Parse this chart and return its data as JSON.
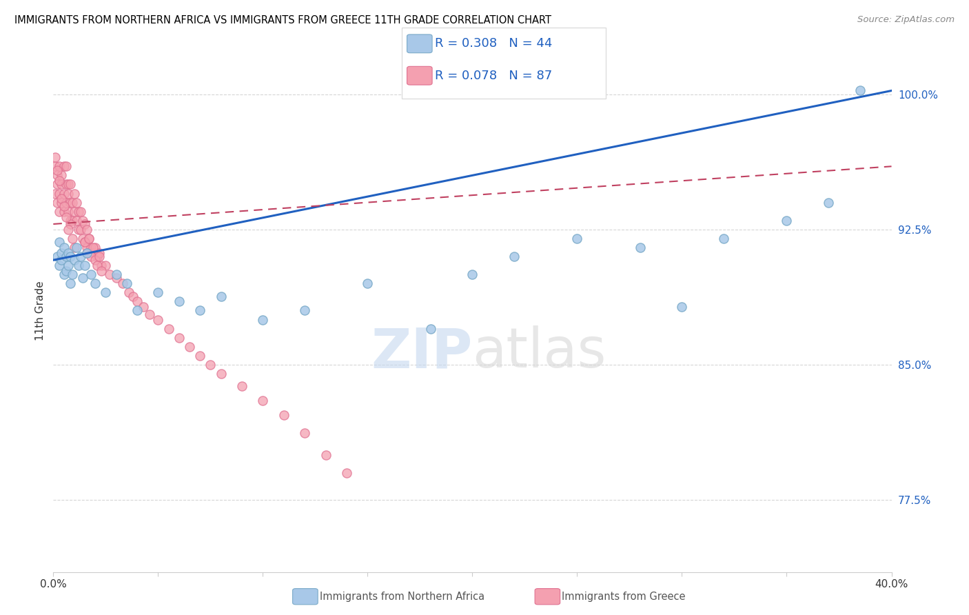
{
  "title": "IMMIGRANTS FROM NORTHERN AFRICA VS IMMIGRANTS FROM GREECE 11TH GRADE CORRELATION CHART",
  "source": "Source: ZipAtlas.com",
  "xlabel_blue": "Immigrants from Northern Africa",
  "xlabel_pink": "Immigrants from Greece",
  "ylabel": "11th Grade",
  "xlim": [
    0.0,
    0.4
  ],
  "ylim": [
    0.735,
    1.025
  ],
  "ytick_right": [
    0.775,
    0.85,
    0.925,
    1.0
  ],
  "ytick_right_labels": [
    "77.5%",
    "85.0%",
    "92.5%",
    "100.0%"
  ],
  "blue_R": 0.308,
  "blue_N": 44,
  "pink_R": 0.078,
  "pink_N": 87,
  "blue_color": "#a8c8e8",
  "blue_edge_color": "#7aaac8",
  "pink_color": "#f4a0b0",
  "pink_edge_color": "#e07090",
  "blue_line_color": "#2060c0",
  "pink_line_color": "#c04060",
  "grid_color": "#cccccc",
  "blue_x": [
    0.002,
    0.003,
    0.003,
    0.004,
    0.004,
    0.005,
    0.005,
    0.006,
    0.006,
    0.007,
    0.007,
    0.008,
    0.008,
    0.009,
    0.01,
    0.011,
    0.012,
    0.013,
    0.014,
    0.015,
    0.016,
    0.018,
    0.02,
    0.025,
    0.03,
    0.035,
    0.04,
    0.05,
    0.06,
    0.07,
    0.08,
    0.1,
    0.12,
    0.15,
    0.18,
    0.2,
    0.22,
    0.25,
    0.28,
    0.3,
    0.32,
    0.35,
    0.37,
    0.385
  ],
  "blue_y": [
    0.91,
    0.905,
    0.918,
    0.908,
    0.912,
    0.9,
    0.915,
    0.91,
    0.902,
    0.912,
    0.905,
    0.91,
    0.895,
    0.9,
    0.908,
    0.915,
    0.905,
    0.91,
    0.898,
    0.905,
    0.912,
    0.9,
    0.895,
    0.89,
    0.9,
    0.895,
    0.88,
    0.89,
    0.885,
    0.88,
    0.888,
    0.875,
    0.88,
    0.895,
    0.87,
    0.9,
    0.91,
    0.92,
    0.915,
    0.882,
    0.92,
    0.93,
    0.94,
    1.002
  ],
  "pink_x": [
    0.001,
    0.001,
    0.002,
    0.002,
    0.002,
    0.003,
    0.003,
    0.003,
    0.004,
    0.004,
    0.004,
    0.005,
    0.005,
    0.005,
    0.006,
    0.006,
    0.006,
    0.007,
    0.007,
    0.007,
    0.008,
    0.008,
    0.008,
    0.009,
    0.009,
    0.01,
    0.01,
    0.011,
    0.011,
    0.012,
    0.012,
    0.013,
    0.013,
    0.014,
    0.014,
    0.015,
    0.015,
    0.016,
    0.016,
    0.017,
    0.018,
    0.019,
    0.02,
    0.021,
    0.022,
    0.023,
    0.025,
    0.027,
    0.03,
    0.033,
    0.036,
    0.038,
    0.04,
    0.043,
    0.046,
    0.05,
    0.055,
    0.06,
    0.065,
    0.07,
    0.075,
    0.08,
    0.09,
    0.1,
    0.11,
    0.12,
    0.13,
    0.14,
    0.015,
    0.016,
    0.017,
    0.018,
    0.019,
    0.02,
    0.021,
    0.022,
    0.023,
    0.008,
    0.009,
    0.01,
    0.004,
    0.005,
    0.006,
    0.007,
    0.002,
    0.003,
    0.001
  ],
  "pink_y": [
    0.945,
    0.96,
    0.95,
    0.94,
    0.955,
    0.945,
    0.935,
    0.96,
    0.95,
    0.94,
    0.955,
    0.945,
    0.935,
    0.96,
    0.95,
    0.94,
    0.96,
    0.95,
    0.935,
    0.945,
    0.94,
    0.93,
    0.95,
    0.94,
    0.93,
    0.945,
    0.935,
    0.94,
    0.93,
    0.935,
    0.925,
    0.935,
    0.925,
    0.93,
    0.92,
    0.928,
    0.918,
    0.925,
    0.915,
    0.92,
    0.915,
    0.912,
    0.915,
    0.91,
    0.912,
    0.905,
    0.905,
    0.9,
    0.898,
    0.895,
    0.89,
    0.888,
    0.885,
    0.882,
    0.878,
    0.875,
    0.87,
    0.865,
    0.86,
    0.855,
    0.85,
    0.845,
    0.838,
    0.83,
    0.822,
    0.812,
    0.8,
    0.79,
    0.918,
    0.912,
    0.92,
    0.91,
    0.915,
    0.908,
    0.905,
    0.91,
    0.902,
    0.928,
    0.92,
    0.915,
    0.942,
    0.938,
    0.932,
    0.925,
    0.958,
    0.952,
    0.965
  ]
}
